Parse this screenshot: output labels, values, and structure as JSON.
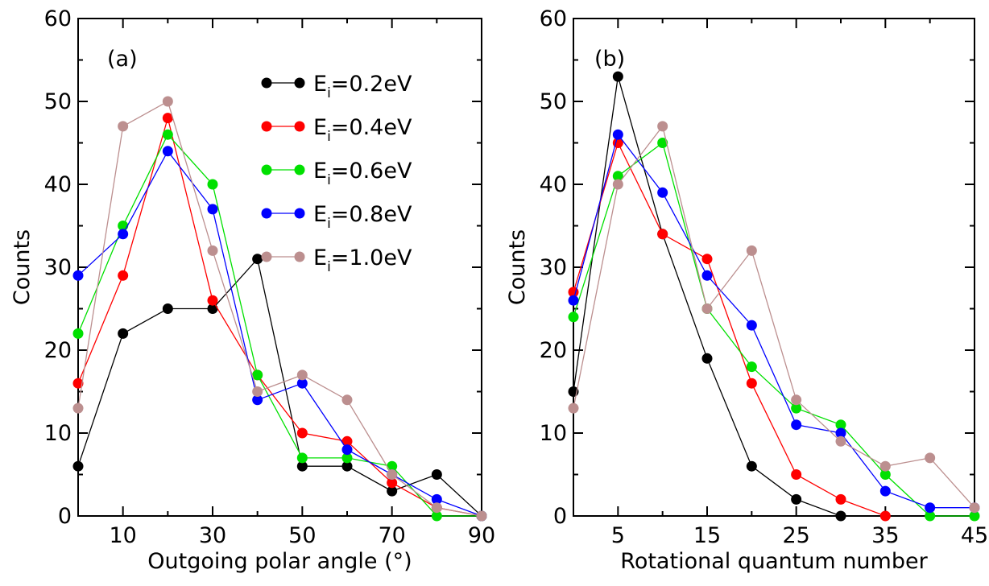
{
  "chart_data": [
    {
      "type": "line",
      "panel_label": "(a)",
      "xlabel": "Outgoing polar angle (°)",
      "ylabel": "Counts",
      "xlim": [
        0,
        90
      ],
      "ylim": [
        0,
        60
      ],
      "xticks": [
        10,
        30,
        50,
        70,
        90
      ],
      "xticks_minor": [
        0,
        20,
        40,
        60,
        80
      ],
      "yticks": [
        0,
        10,
        20,
        30,
        40,
        50,
        60
      ],
      "grid": false,
      "legend_placement": "top-right",
      "x": [
        0,
        10,
        20,
        30,
        40,
        50,
        60,
        70,
        80,
        90
      ],
      "series": [
        {
          "name": "Ei=0.2eV",
          "legend_main": "E",
          "legend_sub": "i",
          "legend_rest": "=0.2eV",
          "color": "#000000",
          "values": [
            6,
            22,
            25,
            25,
            31,
            6,
            6,
            3,
            5,
            0
          ]
        },
        {
          "name": "Ei=0.4eV",
          "legend_main": "E",
          "legend_sub": "i",
          "legend_rest": "=0.4eV",
          "color": "#ff0000",
          "values": [
            16,
            29,
            48,
            26,
            17,
            10,
            9,
            4,
            1,
            0
          ]
        },
        {
          "name": "Ei=0.6eV",
          "legend_main": "E",
          "legend_sub": "i",
          "legend_rest": "=0.6eV",
          "color": "#00e000",
          "values": [
            22,
            35,
            46,
            40,
            17,
            7,
            7,
            6,
            0,
            0
          ]
        },
        {
          "name": "Ei=0.8eV",
          "legend_main": "E",
          "legend_sub": "i",
          "legend_rest": "=0.8eV",
          "color": "#0000ff",
          "values": [
            29,
            34,
            44,
            37,
            14,
            16,
            8,
            5,
            2,
            0
          ]
        },
        {
          "name": "Ei=1.0eV",
          "legend_main": "E",
          "legend_sub": "i",
          "legend_rest": "=1.0eV",
          "color": "#bc8f8f",
          "values": [
            13,
            47,
            50,
            32,
            15,
            17,
            14,
            5,
            1,
            0
          ]
        }
      ]
    },
    {
      "type": "line",
      "panel_label": "(b)",
      "xlabel": "Rotational quantum number",
      "ylabel": "Counts",
      "xlim": [
        0,
        45
      ],
      "ylim": [
        0,
        60
      ],
      "xticks": [
        5,
        15,
        25,
        35,
        45
      ],
      "xticks_minor": [
        0,
        10,
        20,
        30,
        40
      ],
      "yticks": [
        0,
        10,
        20,
        30,
        40,
        50,
        60
      ],
      "grid": false,
      "x": [
        0,
        5,
        10,
        15,
        20,
        25,
        30,
        35,
        40,
        45
      ],
      "series": [
        {
          "color": "#000000",
          "values": [
            15,
            53,
            34,
            19,
            6,
            2,
            0,
            null,
            null,
            null
          ]
        },
        {
          "color": "#ff0000",
          "values": [
            27,
            45,
            34,
            31,
            16,
            5,
            2,
            0,
            null,
            null
          ]
        },
        {
          "color": "#00e000",
          "values": [
            24,
            41,
            45,
            25,
            18,
            13,
            11,
            5,
            0,
            0
          ]
        },
        {
          "color": "#0000ff",
          "values": [
            26,
            46,
            39,
            29,
            23,
            11,
            10,
            3,
            1,
            1
          ]
        },
        {
          "color": "#bc8f8f",
          "values": [
            13,
            40,
            47,
            25,
            32,
            14,
            9,
            6,
            7,
            1
          ]
        }
      ]
    }
  ]
}
